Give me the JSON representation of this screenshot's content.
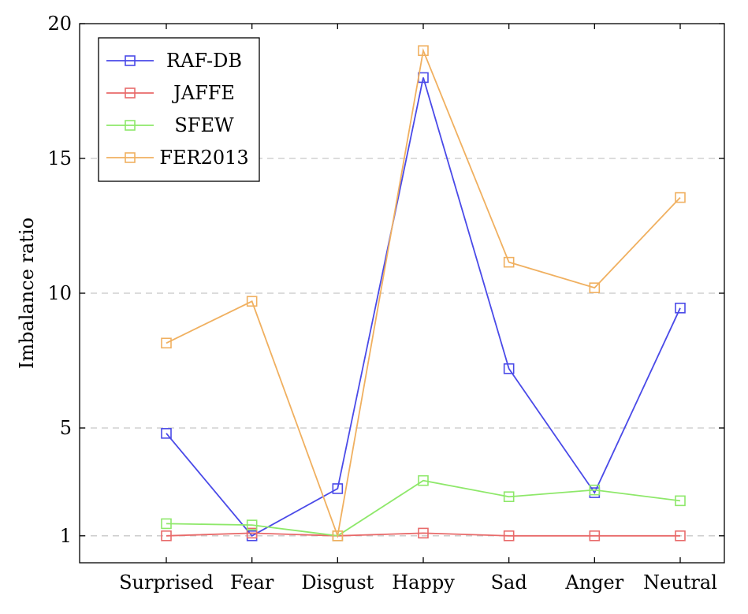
{
  "chart_data": {
    "type": "line",
    "categories": [
      "Surprised",
      "Fear",
      "Disgust",
      "Happy",
      "Sad",
      "Anger",
      "Neutral"
    ],
    "ylabel": "Imbalance ratio",
    "ylim": [
      0,
      20
    ],
    "yticks": [
      1,
      5,
      10,
      15,
      20
    ],
    "grid": "horizontal dashed",
    "legend_position": "top-left",
    "series": [
      {
        "name": "RAF-DB",
        "color": "#4a4ae8",
        "values": [
          4.8,
          1.0,
          2.75,
          18.0,
          7.2,
          2.6,
          9.45
        ]
      },
      {
        "name": "JAFFE",
        "color": "#e86a6a",
        "values": [
          1.0,
          1.1,
          1.0,
          1.1,
          1.0,
          1.0,
          1.0
        ]
      },
      {
        "name": "SFEW",
        "color": "#8ee86a",
        "values": [
          1.45,
          1.4,
          1.0,
          3.05,
          2.45,
          2.7,
          2.3
        ]
      },
      {
        "name": "FER2013",
        "color": "#f0b060",
        "values": [
          8.15,
          9.7,
          1.0,
          19.0,
          11.15,
          10.2,
          13.55
        ]
      }
    ]
  }
}
